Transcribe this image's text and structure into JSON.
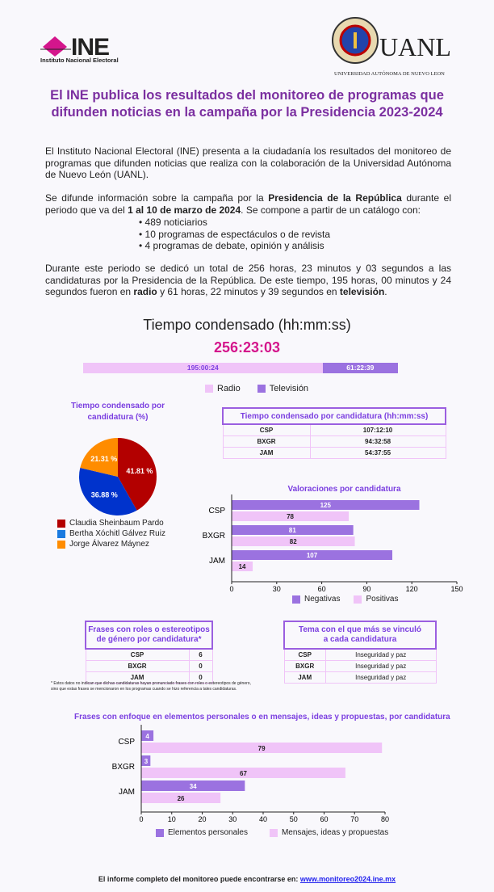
{
  "header": {
    "ine_logo": "INE",
    "ine_subtitle": "Instituto Nacional Electoral",
    "uanl_logo": "UANL",
    "uanl_subtitle": "UNIVERSIDAD AUTÓNOMA DE NUEVO LEON"
  },
  "title_line1": "El INE publica los resultados del monitoreo de programas que",
  "title_line2": "difunden noticias en la campaña por la Presidencia 2023-2024",
  "intro": {
    "p1": "El Instituto Nacional Electoral (INE) presenta a la ciudadanía los resultados del monitoreo de programas que difunden noticias que realiza con la colaboración de la Universidad Autónoma de Nuevo León (UANL).",
    "p2a": "Se difunde información sobre la campaña por la ",
    "p2b": "Presidencia de la República",
    "p2c": " durante el periodo que va del ",
    "p2d": "1 al 10 de marzo de 2024",
    "p2e": ". Se compone a partir de un catálogo con:",
    "bullets": [
      "• 489 noticiarios",
      "• 10 programas de espectáculos o de revista",
      "• 4 programas de debate, opinión y análisis"
    ],
    "p3a": "Durante este periodo se dedicó un total de 256 horas, 23 minutos y 03 segundos a las candidaturas por la Presidencia de la República. De este tiempo, 195 horas, 00 minutos y 24 segundos fueron en ",
    "p3b": "radio",
    "p3c": " y 61 horas, 22 minutos y 39 segundos en ",
    "p3d": "televisión",
    "p3e": "."
  },
  "colors": {
    "radio": "#f0c4f8",
    "tv": "#9b72e0",
    "csp": "#b30000",
    "bxgr": "#0033cc",
    "jam": "#ff8c00",
    "title": "#7b2fa0",
    "total": "#d4168c"
  },
  "chart_data": [
    {
      "type": "bar",
      "title": "Tiempo condensado (hh:mm:ss)",
      "total": "256:23:03",
      "stacked": true,
      "series": [
        {
          "name": "Radio",
          "value": "195:00:24",
          "hours": 195.01
        },
        {
          "name": "Televisión",
          "value": "61:22:39",
          "hours": 61.38
        }
      ],
      "legend": "bottom"
    },
    {
      "type": "pie",
      "title": "Tiempo condensado por candidatura (%)",
      "categories": [
        "Claudia Sheinbaum Pardo",
        "Bertha Xóchitl Gálvez Ruiz",
        "Jorge Álvarez Máynez"
      ],
      "values": [
        41.81,
        36.88,
        21.31
      ],
      "labels": [
        "41.81 %",
        "36.88 %",
        "21.31 %"
      ],
      "legend": "bottom"
    },
    {
      "type": "table",
      "title": "Tiempo condensado por candidatura (hh:mm:ss)",
      "rows": [
        [
          "CSP",
          "107:12:10"
        ],
        [
          "BXGR",
          "94:32:58"
        ],
        [
          "JAM",
          "54:37:55"
        ]
      ]
    },
    {
      "type": "bar",
      "orientation": "horizontal",
      "title": "Valoraciones por candidatura",
      "categories": [
        "CSP",
        "BXGR",
        "JAM"
      ],
      "series": [
        {
          "name": "Negativas",
          "values": [
            125,
            81,
            107
          ]
        },
        {
          "name": "Positivas",
          "values": [
            78,
            82,
            14
          ]
        }
      ],
      "xlim": [
        0,
        150
      ],
      "ticks": [
        0,
        30,
        60,
        90,
        120,
        150
      ],
      "legend": "bottom"
    },
    {
      "type": "table",
      "title": "Frases con roles o estereotipos de género por candidatura*",
      "rows": [
        [
          "CSP",
          "6"
        ],
        [
          "BXGR",
          "0"
        ],
        [
          "JAM",
          "0"
        ]
      ]
    },
    {
      "type": "table",
      "title": "Tema con el que más se vinculó a cada candidatura",
      "rows": [
        [
          "CSP",
          "Inseguridad y paz"
        ],
        [
          "BXGR",
          "Inseguridad y paz"
        ],
        [
          "JAM",
          "Inseguridad y paz"
        ]
      ]
    },
    {
      "type": "bar",
      "orientation": "horizontal",
      "title": "Frases con enfoque en elementos personales o en mensajes, ideas y propuestas, por candidatura",
      "categories": [
        "CSP",
        "BXGR",
        "JAM"
      ],
      "series": [
        {
          "name": "Elementos personales",
          "values": [
            4,
            3,
            34
          ]
        },
        {
          "name": "Mensajes, ideas y propuestas",
          "values": [
            79,
            67,
            26
          ]
        }
      ],
      "xlim": [
        0,
        80
      ],
      "ticks": [
        0,
        10,
        20,
        30,
        40,
        50,
        60,
        70,
        80
      ],
      "legend": "bottom"
    }
  ],
  "table1_title2": "de género por candidatura*",
  "table1_title1": "Frases con roles o estereotipos",
  "table2_title1": "Tema con el que más se vinculó",
  "table2_title2": "a cada candidatura",
  "pie_title1": "Tiempo condensado por",
  "pie_title2": "candidatura (%)",
  "footnote": "* Estos datos no indican que dichas candidaturas hayan pronunciado frases con roles o estereotipos de género, sino que estas frases se mencionaron en los programas cuando se hizo referencia a tales candidaturas.",
  "footer": {
    "text": "El informe completo del monitoreo puede encontrarse en: ",
    "link": "www.monitoreo2024.ine.mx"
  }
}
